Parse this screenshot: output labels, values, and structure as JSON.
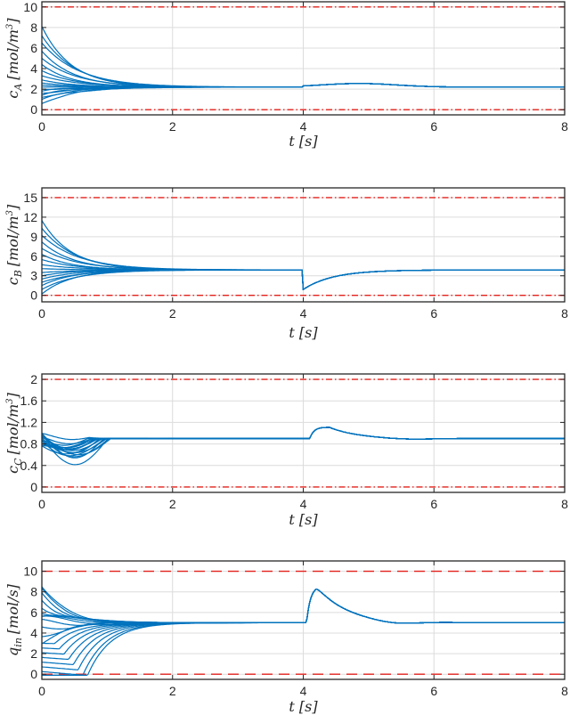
{
  "chart_data": [
    {
      "type": "line",
      "xlabel": "t [s]",
      "ylabel": "c_A [mol/m^3]",
      "xlim": [
        0,
        8
      ],
      "ylim": [
        -0.5,
        10.5
      ],
      "xticks": [
        "0",
        "2",
        "4",
        "6",
        "8"
      ],
      "yticks": [
        0,
        2,
        4,
        6,
        8,
        10
      ],
      "ytick_labels": [
        "0",
        "2",
        "4",
        "6",
        "8",
        "10"
      ],
      "bounds": {
        "lower": 0,
        "upper": 10,
        "style": "dash-dot",
        "color": "#e3201b"
      },
      "series_color": "#0072BD",
      "series_color_name": "blue",
      "initial_values": [
        8.1,
        7.2,
        6.5,
        5.7,
        5.0,
        4.4,
        3.8,
        3.3,
        2.9,
        2.6,
        2.4,
        2.2,
        2.0,
        1.8,
        1.6,
        1.4,
        1.2,
        1.0,
        0.6
      ],
      "steady_state": 2.2,
      "convergence_time": 2.0,
      "disturbance_time": 4.0,
      "disturbance": {
        "type": "hump",
        "peak_time": 4.85,
        "peak_value": 2.55,
        "recover_time": 6.0
      },
      "grid": true
    },
    {
      "type": "line",
      "xlabel": "t [s]",
      "ylabel": "c_B [mol/m^3]",
      "xlim": [
        0,
        8
      ],
      "ylim": [
        -1,
        16.5
      ],
      "xticks": [
        "0",
        "2",
        "4",
        "6",
        "8"
      ],
      "yticks": [
        0,
        3,
        6,
        9,
        12,
        15
      ],
      "ytick_labels": [
        "0",
        "3",
        "6",
        "9",
        "12",
        "15"
      ],
      "bounds": {
        "lower": 0,
        "upper": 15,
        "style": "dash-dot",
        "color": "#e3201b"
      },
      "series_color": "#0072BD",
      "initial_values": [
        11.5,
        10.3,
        9.2,
        8.2,
        7.2,
        6.3,
        5.5,
        4.7,
        4.1,
        3.5,
        3.0,
        2.5,
        2.0,
        1.5,
        0.9,
        0.2
      ],
      "steady_state": 3.9,
      "convergence_time": 2.0,
      "disturbance_time": 4.0,
      "disturbance": {
        "type": "drop",
        "min_value": 0.9,
        "recover_time": 5.5
      },
      "grid": true
    },
    {
      "type": "line",
      "xlabel": "t [s]",
      "ylabel": "c_C [mol/m^3]",
      "xlim": [
        0,
        8
      ],
      "ylim": [
        -0.1,
        2.1
      ],
      "xticks": [
        "0",
        "2",
        "4",
        "6",
        "8"
      ],
      "yticks": [
        0,
        0.4,
        0.8,
        1.2,
        1.6,
        2.0
      ],
      "ytick_labels": [
        "0",
        "0.4",
        "0.8",
        "1.2",
        "1.6",
        "2"
      ],
      "bounds": {
        "lower": 0,
        "upper": 2,
        "style": "dash-dot",
        "color": "#e3201b"
      },
      "series_color": "#0072BD",
      "steady_state": 0.9,
      "convergence_time": 2.0,
      "disturbance_time": 4.1,
      "disturbance": {
        "type": "bump",
        "peak_time": 4.4,
        "peak_value": 1.11,
        "recover_time": 5.4,
        "undershoot": 0.88
      },
      "grid": true
    },
    {
      "type": "line",
      "xlabel": "t [s]",
      "ylabel": "q_in [mol/s]",
      "xlim": [
        0,
        8
      ],
      "ylim": [
        -0.5,
        11
      ],
      "xticks": [
        "0",
        "2",
        "4",
        "6",
        "8"
      ],
      "yticks": [
        0,
        2,
        4,
        6,
        8,
        10
      ],
      "ytick_labels": [
        "0",
        "2",
        "4",
        "6",
        "8",
        "10"
      ],
      "bounds": {
        "lower": 0,
        "upper": 10,
        "style": "dashed",
        "color": "#e3201b"
      },
      "series_color": "#0072BD",
      "steady_state": 5.0,
      "convergence_time": 2.0,
      "disturbance_time": 4.05,
      "disturbance": {
        "type": "spike",
        "peak_time": 4.2,
        "peak_value": 8.5,
        "undershoot": 4.75,
        "undershoot_time": 5.4,
        "recover_time": 6.0
      },
      "grid": true
    }
  ]
}
